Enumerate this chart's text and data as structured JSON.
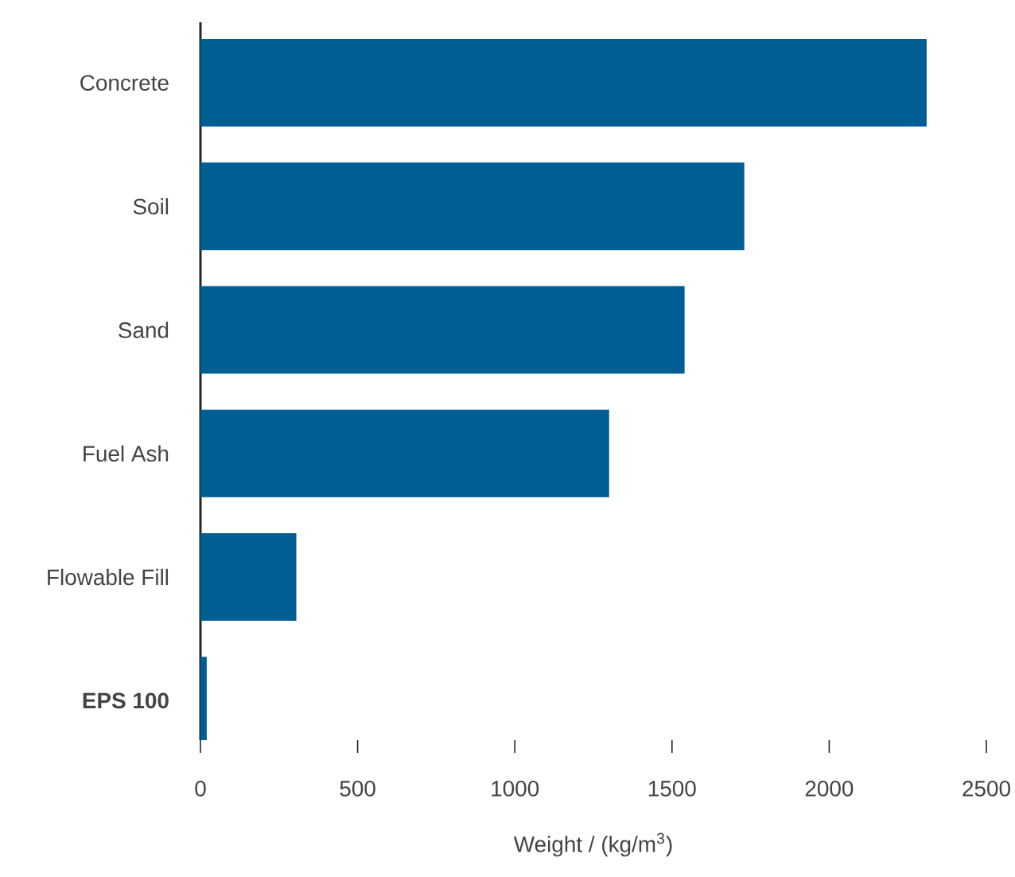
{
  "chart_data": {
    "type": "bar",
    "orientation": "horizontal",
    "categories": [
      "Concrete",
      "Soil",
      "Sand",
      "Fuel Ash",
      "Flowable Fill",
      "**EPS 100**"
    ],
    "values": [
      2310,
      1730,
      1540,
      1300,
      305,
      20
    ],
    "color": "#005e94",
    "xlabel": "Weight / (kg/m$^{3}$)",
    "xlim": [
      0,
      2500
    ],
    "xticks": [
      0,
      500,
      1000,
      1500,
      2000,
      2500
    ],
    "grid": false
  }
}
